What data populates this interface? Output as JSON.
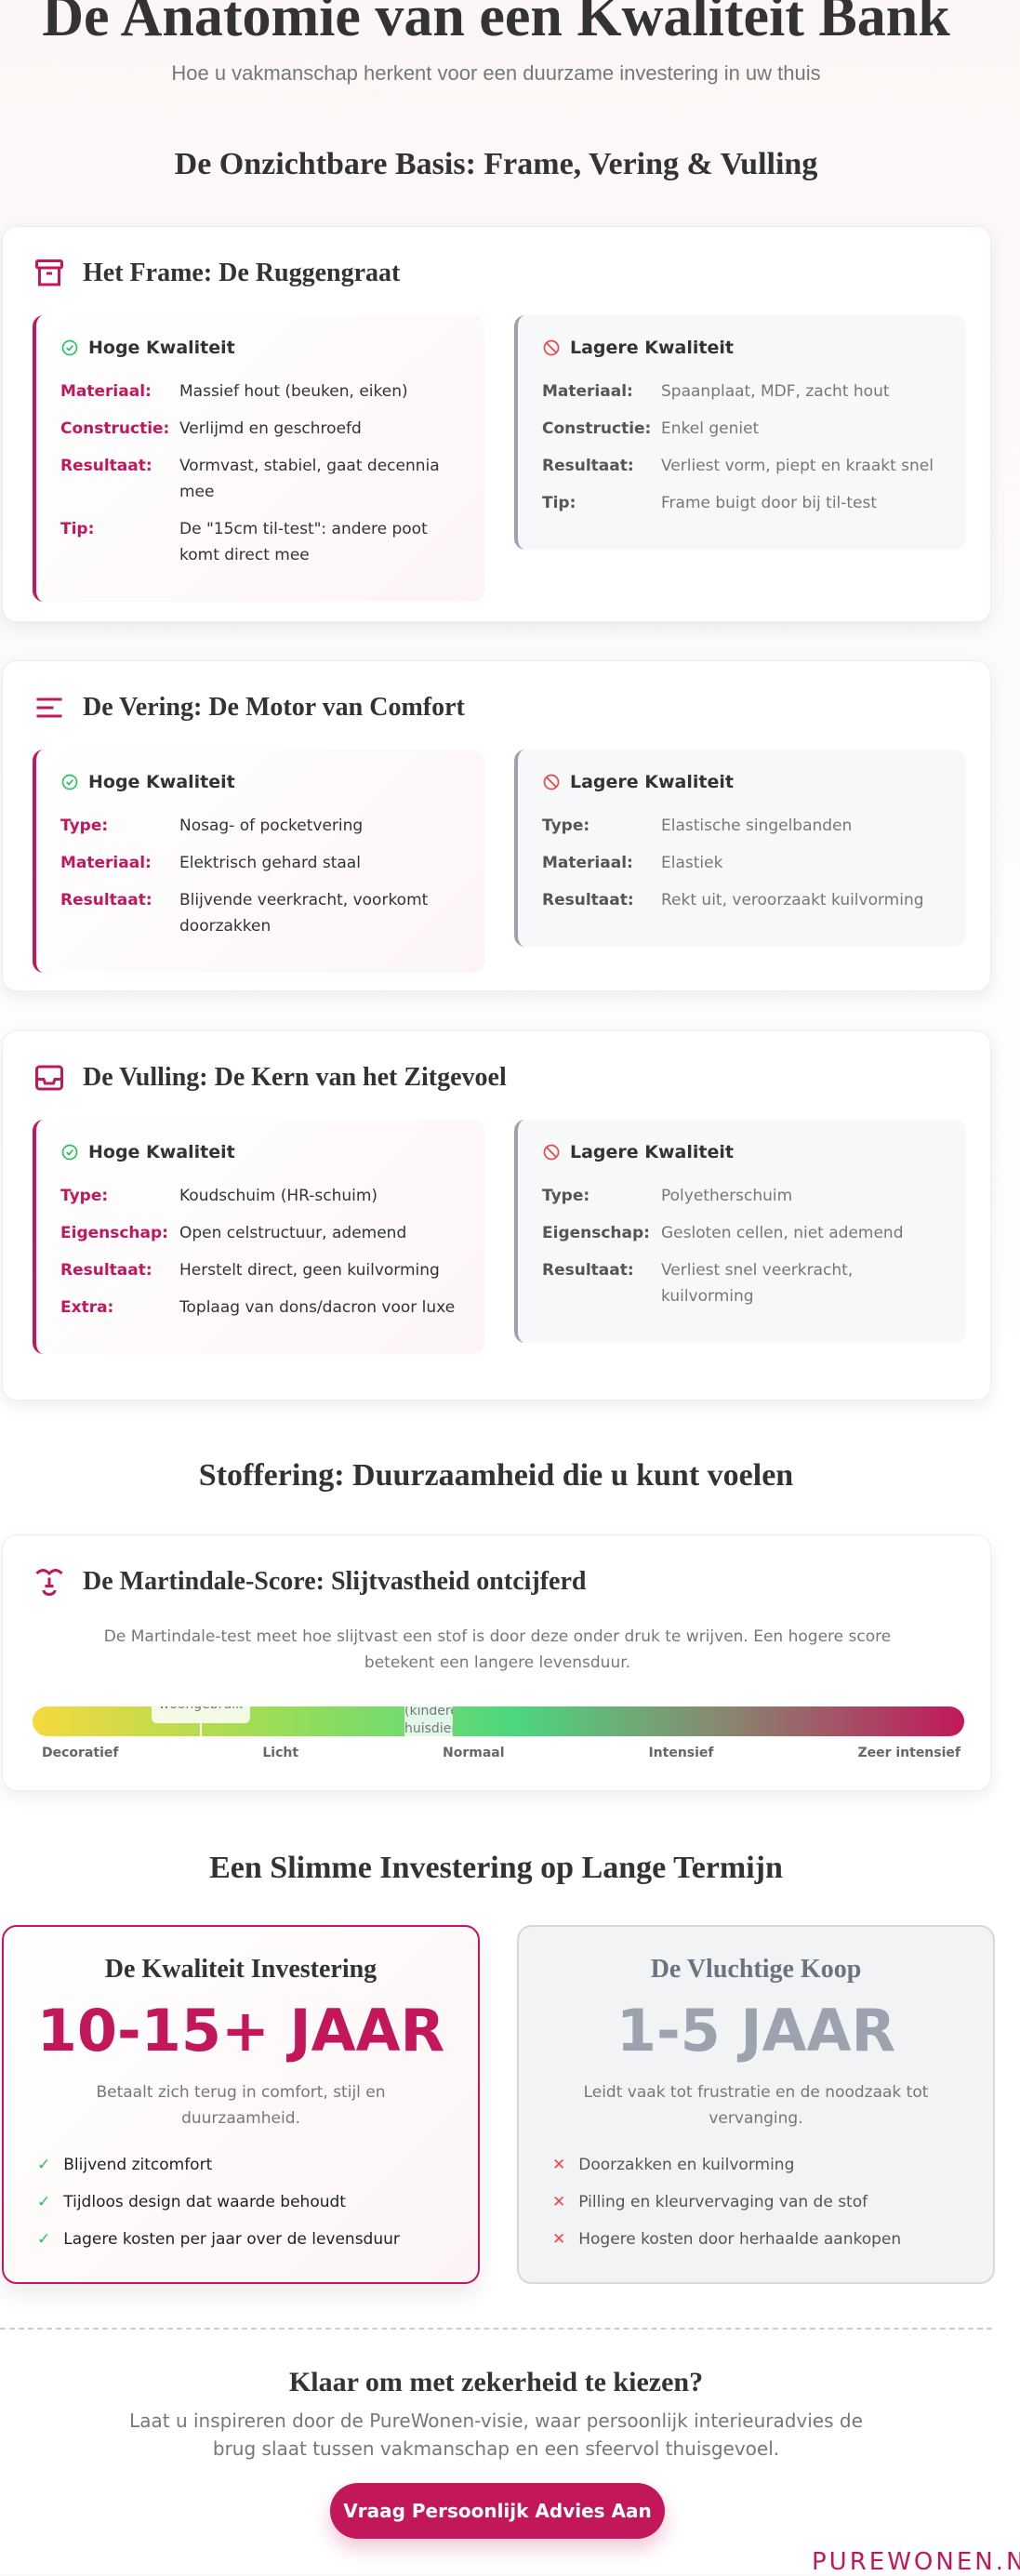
{
  "header": {
    "title": "De Anatomie van een Kwaliteit Bank",
    "subtitle": "Hoe u vakmanschap herkent voor een duurzame investering in uw thuis"
  },
  "section1_title": "De Onzichtbare Basis: Frame, Vering & Vulling",
  "components": [
    {
      "icon": "archive-box-icon",
      "title": "Het Frame: De Ruggengraat",
      "high": {
        "label": "Hoge Kwaliteit",
        "rows": [
          [
            "Materiaal:",
            "Massief hout (beuken, eiken)"
          ],
          [
            "Constructie:",
            "Verlijmd en geschroefd"
          ],
          [
            "Resultaat:",
            "Vormvast, stabiel, gaat decennia mee"
          ],
          [
            "Tip:",
            "De \"15cm til-test\": andere poot komt direct mee"
          ]
        ]
      },
      "low": {
        "label": "Lagere Kwaliteit",
        "rows": [
          [
            "Materiaal:",
            "Spaanplaat, MDF, zacht hout"
          ],
          [
            "Constructie:",
            "Enkel geniet"
          ],
          [
            "Resultaat:",
            "Verliest vorm, piept en kraakt snel"
          ],
          [
            "Tip:",
            "Frame buigt door bij til-test"
          ]
        ]
      }
    },
    {
      "icon": "lines-icon",
      "title": "De Vering: De Motor van Comfort",
      "high": {
        "label": "Hoge Kwaliteit",
        "rows": [
          [
            "Type:",
            "Nosag- of pocketvering"
          ],
          [
            "Materiaal:",
            "Elektrisch gehard staal"
          ],
          [
            "Resultaat:",
            "Blijvende veerkracht, voorkomt doorzakken"
          ]
        ]
      },
      "low": {
        "label": "Lagere Kwaliteit",
        "rows": [
          [
            "Type:",
            "Elastische singelbanden"
          ],
          [
            "Materiaal:",
            "Elastiek"
          ],
          [
            "Resultaat:",
            "Rekt uit, veroorzaakt kuilvorming"
          ]
        ]
      }
    },
    {
      "icon": "inbox-icon",
      "title": "De Vulling: De Kern van het Zitgevoel",
      "high": {
        "label": "Hoge Kwaliteit",
        "rows": [
          [
            "Type:",
            "Koudschuim (HR-schuim)"
          ],
          [
            "Eigenschap:",
            "Open celstructuur, ademend"
          ],
          [
            "Resultaat:",
            "Herstelt direct, geen kuilvorming"
          ],
          [
            "Extra:",
            "Toplaag van dons/dacron voor luxe"
          ]
        ]
      },
      "low": {
        "label": "Lagere Kwaliteit",
        "rows": [
          [
            "Type:",
            "Polyetherschuim"
          ],
          [
            "Eigenschap:",
            "Gesloten cellen, niet ademend"
          ],
          [
            "Resultaat:",
            "Verliest snel veerkracht, kuilvorming"
          ]
        ]
      }
    }
  ],
  "section2_title": "Stoffering: Duurzaamheid die u kunt voelen",
  "martindale": {
    "title": "De Martindale-Score: Slijtvastheid ontcijferd",
    "description": "De Martindale-test meet hoe slijtvast een stof is door deze onder druk te wrijven. Een hogere score betekent een langere levensduur.",
    "tooltip1": "woongebruik",
    "tooltip2": "(kinderen, huisdieren)",
    "scale": [
      "Decoratief",
      "Licht",
      "Normaal",
      "Intensief",
      "Zeer intensief"
    ]
  },
  "section3_title": "Een Slimme Investering op Lange Termijn",
  "investment": {
    "good": {
      "title": "De Kwaliteit Investering",
      "years": "10-15+ JAAR",
      "description": "Betaalt zich terug in comfort, stijl en duurzaamheid.",
      "items": [
        "Blijvend zitcomfort",
        "Tijdloos design dat waarde behoudt",
        "Lagere kosten per jaar over de levensduur"
      ]
    },
    "bad": {
      "title": "De Vluchtige Koop",
      "years": "1-5 JAAR",
      "description": "Leidt vaak tot frustratie en de noodzaak tot vervanging.",
      "items": [
        "Doorzakken en kuilvorming",
        "Pilling en kleurvervaging van de stof",
        "Hogere kosten door herhaalde aankopen"
      ]
    }
  },
  "cta": {
    "title": "Klaar om met zekerheid te kiezen?",
    "description": "Laat u inspireren door de PureWonen-visie, waar persoonlijk interieuradvies de brug slaat tussen vakmanschap en een sfeervol thuisgevoel.",
    "button": "Vraag Persoonlijk Advies Aan"
  },
  "brand": "PUREWONEN.NL",
  "colors": {
    "accent": "#c2185b",
    "good": "#22c55e",
    "bad": "#ef4444",
    "muted": "#9ca3af"
  }
}
